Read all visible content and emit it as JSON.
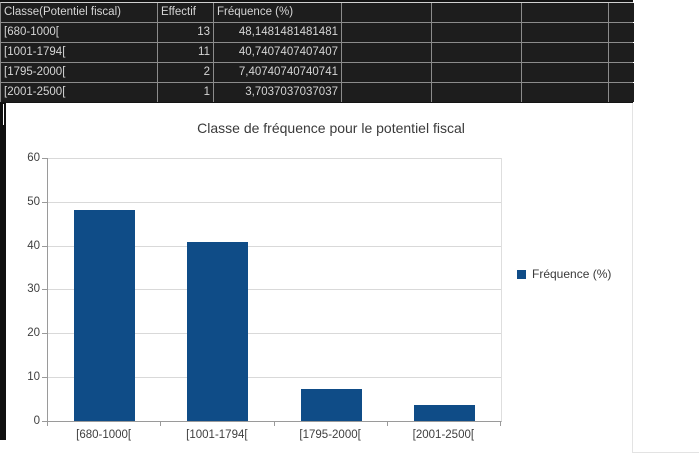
{
  "table": {
    "columns": [
      {
        "label": "Classe(Potentiel fiscal)"
      },
      {
        "label": "Effectif"
      },
      {
        "label": "Fréquence (%)"
      },
      {
        "label": ""
      },
      {
        "label": ""
      },
      {
        "label": ""
      },
      {
        "label": ""
      }
    ],
    "rows": [
      [
        "[680-1000[",
        "13",
        "48,1481481481481"
      ],
      [
        "[1001-1794[",
        "11",
        "40,7407407407407"
      ],
      [
        "[1795-2000[",
        "2",
        "7,40740740740741"
      ],
      [
        "[2001-2500[",
        "1",
        "3,7037037037037"
      ]
    ]
  },
  "chart_data": {
    "type": "bar",
    "title": "Classe de fréquence pour le potentiel fiscal",
    "categories": [
      "[680-1000[",
      "[1001-1794[",
      "[1795-2000[",
      "[2001-2500["
    ],
    "series": [
      {
        "name": "Fréquence (%)",
        "color": "#0f4c87",
        "values": [
          48.1481481481481,
          40.7407407407407,
          7.40740740740741,
          3.7037037037037
        ]
      }
    ],
    "xlabel": "",
    "ylabel": "",
    "ylim": [
      0,
      60
    ],
    "ytick_step": 10,
    "grid": "horizontal",
    "legend_position": "right"
  },
  "colors": {
    "bar_blue": "#0f4c87",
    "table_background": "#1d1d1d",
    "table_text": "#d6d6d6"
  }
}
